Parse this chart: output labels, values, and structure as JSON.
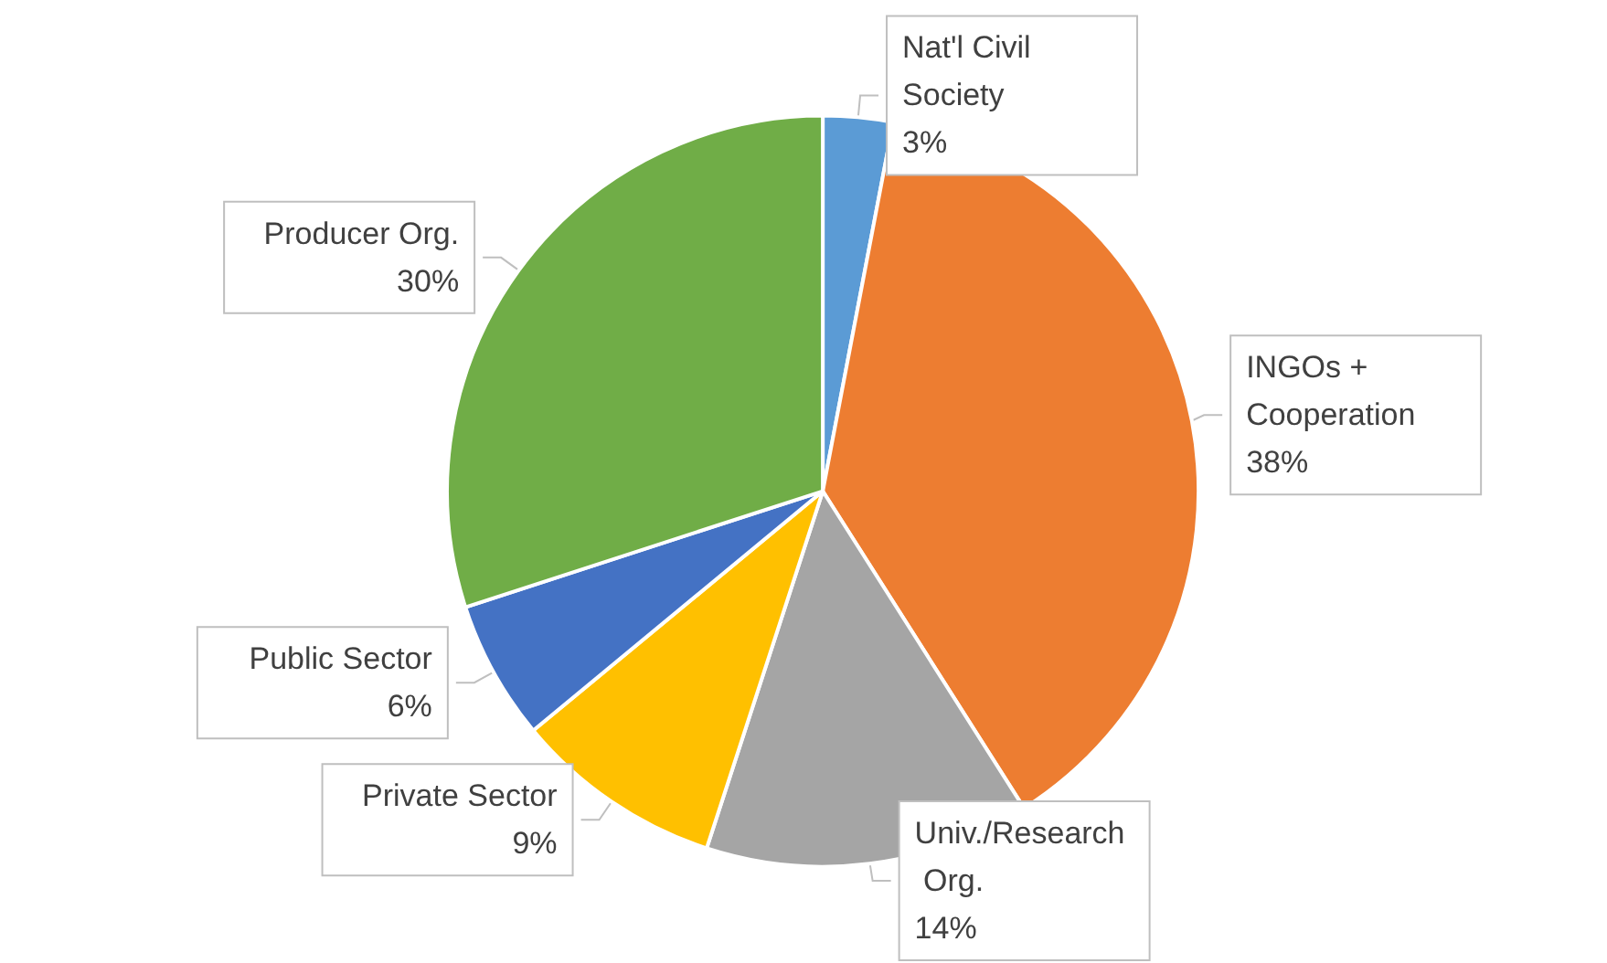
{
  "chart_data": {
    "type": "pie",
    "categories": [
      "Nat'l Civil Society",
      "INGOs + Cooperation",
      "Univ./Research Org.",
      "Private Sector",
      "Public Sector",
      "Producer Org."
    ],
    "values": [
      3,
      38,
      14,
      9,
      6,
      30
    ],
    "value_labels": [
      "3%",
      "38%",
      "14%",
      "9%",
      "6%",
      "30%"
    ],
    "colors": [
      "#5b9bd5",
      "#ed7d31",
      "#a5a5a5",
      "#ffc000",
      "#4472c4",
      "#70ad47"
    ],
    "legend": false
  }
}
